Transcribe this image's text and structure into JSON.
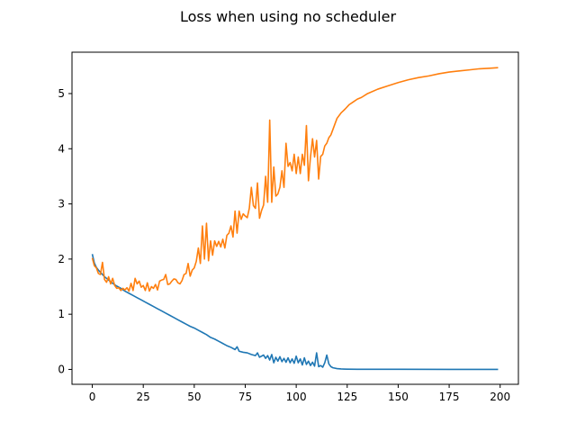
{
  "chart_data": {
    "type": "line",
    "title": "Loss when using no scheduler",
    "xlabel": "",
    "ylabel": "",
    "xlim": [
      -9.95,
      208.95
    ],
    "ylim": [
      -0.27,
      5.75
    ],
    "xticks": [
      0,
      25,
      50,
      75,
      100,
      125,
      150,
      175,
      200
    ],
    "yticks": [
      0,
      1,
      2,
      3,
      4,
      5
    ],
    "grid": false,
    "legend": "none",
    "series": [
      {
        "color": "#1f77b4",
        "points": [
          [
            0,
            2.09
          ],
          [
            1,
            1.93
          ],
          [
            2,
            1.85
          ],
          [
            3,
            1.8
          ],
          [
            4,
            1.76
          ],
          [
            5,
            1.72
          ],
          [
            6,
            1.68
          ],
          [
            7,
            1.65
          ],
          [
            8,
            1.62
          ],
          [
            9,
            1.59
          ],
          [
            10,
            1.56
          ],
          [
            12,
            1.51
          ],
          [
            14,
            1.47
          ],
          [
            16,
            1.42
          ],
          [
            18,
            1.38
          ],
          [
            20,
            1.34
          ],
          [
            22,
            1.3
          ],
          [
            24,
            1.26
          ],
          [
            26,
            1.22
          ],
          [
            28,
            1.18
          ],
          [
            30,
            1.14
          ],
          [
            32,
            1.1
          ],
          [
            34,
            1.06
          ],
          [
            36,
            1.02
          ],
          [
            38,
            0.98
          ],
          [
            40,
            0.94
          ],
          [
            42,
            0.9
          ],
          [
            44,
            0.86
          ],
          [
            46,
            0.82
          ],
          [
            48,
            0.78
          ],
          [
            50,
            0.75
          ],
          [
            52,
            0.71
          ],
          [
            54,
            0.67
          ],
          [
            56,
            0.63
          ],
          [
            58,
            0.58
          ],
          [
            60,
            0.55
          ],
          [
            62,
            0.51
          ],
          [
            64,
            0.47
          ],
          [
            66,
            0.43
          ],
          [
            68,
            0.4
          ],
          [
            70,
            0.36
          ],
          [
            71,
            0.41
          ],
          [
            72,
            0.33
          ],
          [
            74,
            0.31
          ],
          [
            76,
            0.3
          ],
          [
            78,
            0.27
          ],
          [
            80,
            0.25
          ],
          [
            81,
            0.3
          ],
          [
            82,
            0.22
          ],
          [
            84,
            0.26
          ],
          [
            85,
            0.2
          ],
          [
            86,
            0.25
          ],
          [
            87,
            0.17
          ],
          [
            88,
            0.27
          ],
          [
            89,
            0.12
          ],
          [
            90,
            0.22
          ],
          [
            91,
            0.15
          ],
          [
            92,
            0.23
          ],
          [
            93,
            0.14
          ],
          [
            94,
            0.2
          ],
          [
            95,
            0.13
          ],
          [
            96,
            0.21
          ],
          [
            97,
            0.12
          ],
          [
            98,
            0.19
          ],
          [
            99,
            0.11
          ],
          [
            100,
            0.24
          ],
          [
            101,
            0.12
          ],
          [
            102,
            0.19
          ],
          [
            103,
            0.08
          ],
          [
            104,
            0.21
          ],
          [
            105,
            0.09
          ],
          [
            106,
            0.15
          ],
          [
            107,
            0.07
          ],
          [
            108,
            0.13
          ],
          [
            109,
            0.06
          ],
          [
            110,
            0.3
          ],
          [
            111,
            0.05
          ],
          [
            112,
            0.07
          ],
          [
            113,
            0.04
          ],
          [
            114,
            0.12
          ],
          [
            115,
            0.26
          ],
          [
            116,
            0.1
          ],
          [
            117,
            0.05
          ],
          [
            118,
            0.03
          ],
          [
            120,
            0.015
          ],
          [
            122,
            0.008
          ],
          [
            125,
            0.005
          ],
          [
            130,
            0.003
          ],
          [
            140,
            0.002
          ],
          [
            150,
            0.002
          ],
          [
            175,
            0.001
          ],
          [
            199,
            0.001
          ]
        ]
      },
      {
        "color": "#ff7f0e",
        "points": [
          [
            0,
            2.02
          ],
          [
            1,
            1.88
          ],
          [
            2,
            1.84
          ],
          [
            3,
            1.74
          ],
          [
            4,
            1.72
          ],
          [
            5,
            1.94
          ],
          [
            6,
            1.63
          ],
          [
            7,
            1.58
          ],
          [
            8,
            1.68
          ],
          [
            9,
            1.55
          ],
          [
            10,
            1.65
          ],
          [
            11,
            1.52
          ],
          [
            12,
            1.47
          ],
          [
            13,
            1.48
          ],
          [
            14,
            1.43
          ],
          [
            15,
            1.47
          ],
          [
            16,
            1.44
          ],
          [
            17,
            1.48
          ],
          [
            18,
            1.42
          ],
          [
            19,
            1.56
          ],
          [
            20,
            1.43
          ],
          [
            21,
            1.65
          ],
          [
            22,
            1.55
          ],
          [
            23,
            1.6
          ],
          [
            24,
            1.49
          ],
          [
            25,
            1.52
          ],
          [
            26,
            1.43
          ],
          [
            27,
            1.57
          ],
          [
            28,
            1.42
          ],
          [
            29,
            1.5
          ],
          [
            30,
            1.47
          ],
          [
            31,
            1.54
          ],
          [
            32,
            1.44
          ],
          [
            33,
            1.6
          ],
          [
            34,
            1.62
          ],
          [
            35,
            1.63
          ],
          [
            36,
            1.72
          ],
          [
            37,
            1.54
          ],
          [
            38,
            1.55
          ],
          [
            39,
            1.6
          ],
          [
            40,
            1.64
          ],
          [
            41,
            1.63
          ],
          [
            42,
            1.57
          ],
          [
            43,
            1.55
          ],
          [
            44,
            1.61
          ],
          [
            45,
            1.72
          ],
          [
            46,
            1.74
          ],
          [
            47,
            1.92
          ],
          [
            48,
            1.69
          ],
          [
            49,
            1.8
          ],
          [
            50,
            1.84
          ],
          [
            51,
            1.96
          ],
          [
            52,
            2.2
          ],
          [
            53,
            1.92
          ],
          [
            54,
            2.6
          ],
          [
            55,
            2.0
          ],
          [
            56,
            2.65
          ],
          [
            57,
            1.97
          ],
          [
            58,
            2.33
          ],
          [
            59,
            2.07
          ],
          [
            60,
            2.33
          ],
          [
            61,
            2.23
          ],
          [
            62,
            2.32
          ],
          [
            63,
            2.22
          ],
          [
            64,
            2.36
          ],
          [
            65,
            2.2
          ],
          [
            66,
            2.43
          ],
          [
            67,
            2.47
          ],
          [
            68,
            2.6
          ],
          [
            69,
            2.4
          ],
          [
            70,
            2.87
          ],
          [
            71,
            2.47
          ],
          [
            72,
            2.87
          ],
          [
            73,
            2.72
          ],
          [
            74,
            2.82
          ],
          [
            75,
            2.78
          ],
          [
            76,
            2.75
          ],
          [
            77,
            2.92
          ],
          [
            78,
            3.3
          ],
          [
            79,
            2.97
          ],
          [
            80,
            2.92
          ],
          [
            81,
            3.38
          ],
          [
            82,
            2.74
          ],
          [
            83,
            2.88
          ],
          [
            84,
            2.98
          ],
          [
            85,
            3.5
          ],
          [
            86,
            3.03
          ],
          [
            87,
            4.52
          ],
          [
            88,
            3.03
          ],
          [
            89,
            3.67
          ],
          [
            90,
            3.14
          ],
          [
            91,
            3.18
          ],
          [
            92,
            3.3
          ],
          [
            93,
            3.6
          ],
          [
            94,
            3.3
          ],
          [
            95,
            4.1
          ],
          [
            96,
            3.68
          ],
          [
            97,
            3.75
          ],
          [
            98,
            3.6
          ],
          [
            99,
            3.9
          ],
          [
            100,
            3.55
          ],
          [
            101,
            3.85
          ],
          [
            102,
            3.55
          ],
          [
            103,
            3.9
          ],
          [
            104,
            3.7
          ],
          [
            105,
            4.42
          ],
          [
            106,
            3.42
          ],
          [
            107,
            3.85
          ],
          [
            108,
            4.18
          ],
          [
            109,
            3.85
          ],
          [
            110,
            4.15
          ],
          [
            111,
            3.45
          ],
          [
            112,
            3.86
          ],
          [
            113,
            3.9
          ],
          [
            114,
            4.05
          ],
          [
            115,
            4.1
          ],
          [
            116,
            4.2
          ],
          [
            117,
            4.25
          ],
          [
            118,
            4.35
          ],
          [
            119,
            4.45
          ],
          [
            120,
            4.55
          ],
          [
            122,
            4.65
          ],
          [
            124,
            4.72
          ],
          [
            126,
            4.8
          ],
          [
            128,
            4.85
          ],
          [
            130,
            4.9
          ],
          [
            132,
            4.93
          ],
          [
            135,
            5.0
          ],
          [
            140,
            5.08
          ],
          [
            145,
            5.14
          ],
          [
            150,
            5.2
          ],
          [
            155,
            5.25
          ],
          [
            160,
            5.29
          ],
          [
            165,
            5.32
          ],
          [
            170,
            5.36
          ],
          [
            175,
            5.39
          ],
          [
            180,
            5.41
          ],
          [
            185,
            5.43
          ],
          [
            190,
            5.45
          ],
          [
            195,
            5.46
          ],
          [
            199,
            5.47
          ]
        ]
      }
    ]
  }
}
